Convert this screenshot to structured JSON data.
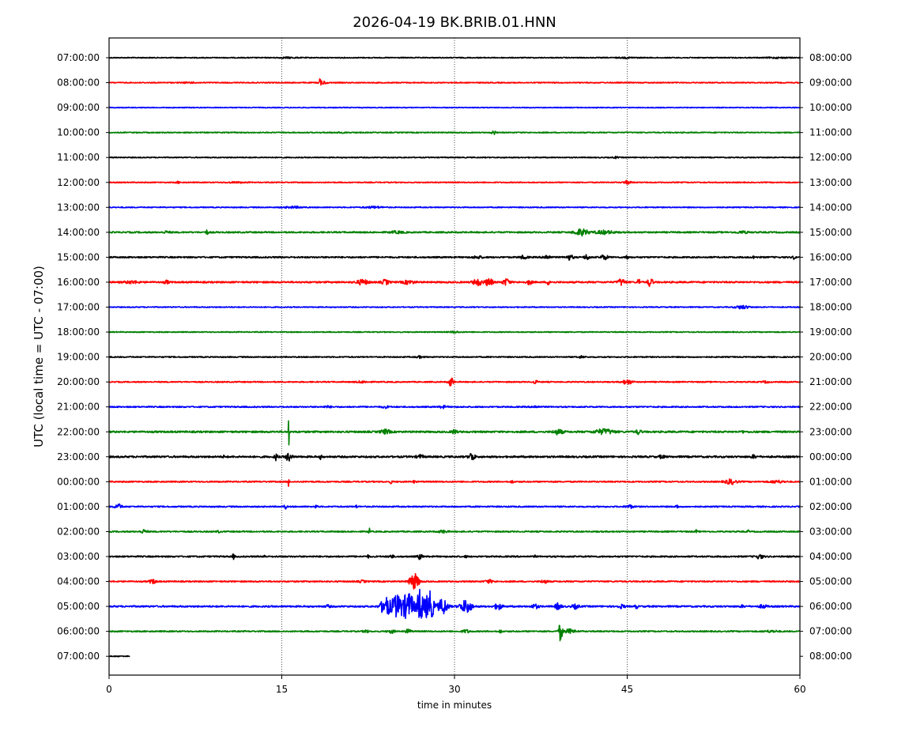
{
  "chart_data": {
    "type": "line",
    "title": "2026-04-19 BK.BRIB.01.HNN",
    "xlabel": "time in minutes",
    "ylabel": "UTC (local time = UTC - 07:00)",
    "xlim": [
      0,
      60
    ],
    "xticks": [
      "0",
      "15",
      "30",
      "45",
      "60"
    ],
    "vertical_gridlines_at": [
      15,
      30,
      45
    ],
    "left_tick_labels": [
      "07:00:00",
      "08:00:00",
      "09:00:00",
      "10:00:00",
      "11:00:00",
      "12:00:00",
      "13:00:00",
      "14:00:00",
      "15:00:00",
      "16:00:00",
      "17:00:00",
      "18:00:00",
      "19:00:00",
      "20:00:00",
      "21:00:00",
      "22:00:00",
      "23:00:00",
      "00:00:00",
      "01:00:00",
      "02:00:00",
      "03:00:00",
      "04:00:00",
      "05:00:00",
      "06:00:00",
      "07:00:00"
    ],
    "right_tick_labels": [
      "08:00:00",
      "09:00:00",
      "10:00:00",
      "11:00:00",
      "12:00:00",
      "13:00:00",
      "14:00:00",
      "15:00:00",
      "16:00:00",
      "17:00:00",
      "18:00:00",
      "19:00:00",
      "20:00:00",
      "21:00:00",
      "22:00:00",
      "23:00:00",
      "00:00:00",
      "01:00:00",
      "02:00:00",
      "03:00:00",
      "04:00:00",
      "05:00:00",
      "06:00:00",
      "07:00:00",
      "08:00:00"
    ],
    "trace_colors": [
      "#000000",
      "#ff0000",
      "#0000ff",
      "#008000"
    ],
    "traces": [
      {
        "end_minute": 60,
        "noise": 0.6,
        "events": [
          [
            15.5,
            0.6,
            0.8
          ],
          [
            45,
            0.5,
            0.8
          ],
          [
            58,
            0.5,
            1.0
          ]
        ]
      },
      {
        "end_minute": 60,
        "noise": 0.6,
        "events": [
          [
            18.3,
            6,
            0.08
          ],
          [
            18.6,
            2,
            0.3
          ],
          [
            7,
            0.5,
            0.6
          ]
        ]
      },
      {
        "end_minute": 60,
        "noise": 0.5,
        "events": []
      },
      {
        "end_minute": 60,
        "noise": 0.6,
        "events": [
          [
            33.4,
            3,
            0.15
          ],
          [
            20,
            0.4,
            1.0
          ]
        ]
      },
      {
        "end_minute": 60,
        "noise": 0.6,
        "events": [
          [
            44,
            1,
            0.2
          ]
        ]
      },
      {
        "end_minute": 60,
        "noise": 0.6,
        "events": [
          [
            45,
            2,
            0.3
          ],
          [
            11,
            0.6,
            0.8
          ],
          [
            6,
            1,
            0.2
          ]
        ]
      },
      {
        "end_minute": 60,
        "noise": 0.6,
        "events": [
          [
            16,
            1,
            0.8
          ],
          [
            23,
            1,
            0.8
          ]
        ]
      },
      {
        "end_minute": 60,
        "noise": 0.9,
        "events": [
          [
            41,
            4,
            0.6
          ],
          [
            43,
            2,
            0.8
          ],
          [
            8.5,
            3,
            0.1
          ],
          [
            5,
            1.2,
            0.3
          ],
          [
            25,
            1.2,
            0.6
          ],
          [
            55,
            1.2,
            0.5
          ]
        ]
      },
      {
        "end_minute": 60,
        "noise": 0.9,
        "events": [
          [
            38,
            2.5,
            0.3
          ],
          [
            40,
            3,
            0.3
          ],
          [
            41.5,
            3.5,
            0.2
          ],
          [
            43,
            3,
            0.3
          ],
          [
            45,
            4,
            0.1
          ],
          [
            32,
            1.5,
            0.4
          ],
          [
            36,
            2,
            0.3
          ],
          [
            56,
            2,
            0.1
          ],
          [
            59.5,
            3,
            0.1
          ]
        ]
      },
      {
        "end_minute": 60,
        "noise": 1.0,
        "events": [
          [
            22,
            3,
            0.5
          ],
          [
            24,
            3,
            0.3
          ],
          [
            26,
            2,
            0.5
          ],
          [
            32,
            4,
            0.4
          ],
          [
            33,
            5,
            0.3
          ],
          [
            34.5,
            4,
            0.3
          ],
          [
            36.5,
            3,
            0.2
          ],
          [
            38.2,
            6,
            0.1
          ],
          [
            44.5,
            4,
            0.3
          ],
          [
            46,
            5,
            0.1
          ],
          [
            47,
            6,
            0.2
          ],
          [
            2,
            1.5,
            0.6
          ],
          [
            5,
            2,
            0.2
          ]
        ]
      },
      {
        "end_minute": 60,
        "noise": 0.6,
        "events": [
          [
            55,
            2,
            0.6
          ]
        ]
      },
      {
        "end_minute": 60,
        "noise": 0.6,
        "events": [
          [
            30,
            1,
            0.4
          ]
        ]
      },
      {
        "end_minute": 60,
        "noise": 0.7,
        "events": [
          [
            27,
            1.2,
            0.3
          ],
          [
            41,
            1.2,
            0.3
          ]
        ]
      },
      {
        "end_minute": 60,
        "noise": 0.7,
        "events": [
          [
            29.7,
            6,
            0.2
          ],
          [
            37,
            2,
            0.2
          ],
          [
            45,
            3,
            0.4
          ],
          [
            22,
            1,
            0.5
          ],
          [
            57,
            1,
            0.3
          ]
        ]
      },
      {
        "end_minute": 60,
        "noise": 0.8,
        "events": [
          [
            29,
            1.5,
            0.3
          ],
          [
            24,
            1.2,
            0.3
          ],
          [
            37,
            1.2,
            0.3
          ],
          [
            19,
            1,
            0.3
          ]
        ]
      },
      {
        "end_minute": 60,
        "noise": 1.1,
        "events": [
          [
            15.6,
            25,
            0.03
          ],
          [
            43,
            3,
            0.8
          ],
          [
            39,
            3,
            0.4
          ],
          [
            30,
            2.5,
            0.2
          ],
          [
            24,
            2.5,
            0.4
          ],
          [
            46,
            3,
            0.2
          ],
          [
            55,
            2,
            0.1
          ]
        ]
      },
      {
        "end_minute": 60,
        "noise": 1.1,
        "events": [
          [
            14.5,
            4,
            0.15
          ],
          [
            15.6,
            5,
            0.25
          ],
          [
            18.4,
            3,
            0.1
          ],
          [
            31.5,
            5,
            0.25
          ],
          [
            27,
            2,
            0.3
          ],
          [
            56,
            2,
            0.2
          ],
          [
            10,
            1.5,
            0.1
          ],
          [
            48,
            2,
            0.2
          ]
        ]
      },
      {
        "end_minute": 60,
        "noise": 0.8,
        "events": [
          [
            15.6,
            13,
            0.03
          ],
          [
            54,
            3,
            0.5
          ],
          [
            58,
            1.5,
            0.6
          ],
          [
            24.5,
            2,
            0.1
          ],
          [
            35,
            2,
            0.1
          ],
          [
            26.5,
            1.5,
            0.1
          ]
        ]
      },
      {
        "end_minute": 60,
        "noise": 0.8,
        "events": [
          [
            0.8,
            3,
            0.3
          ],
          [
            15.3,
            3,
            0.1
          ],
          [
            18,
            2,
            0.1
          ],
          [
            45.2,
            2,
            0.3
          ],
          [
            49.3,
            3,
            0.1
          ],
          [
            21.5,
            1.5,
            0.1
          ]
        ]
      },
      {
        "end_minute": 60,
        "noise": 0.8,
        "events": [
          [
            22.6,
            6,
            0.05
          ],
          [
            3,
            2,
            0.3
          ],
          [
            29,
            1.5,
            0.4
          ],
          [
            51,
            3,
            0.05
          ],
          [
            55.5,
            2.5,
            0.05
          ],
          [
            9.5,
            1.5,
            0.1
          ]
        ]
      },
      {
        "end_minute": 60,
        "noise": 0.9,
        "events": [
          [
            10.8,
            3,
            0.1
          ],
          [
            13.5,
            2,
            0.1
          ],
          [
            22.5,
            1.5,
            0.1
          ],
          [
            24.5,
            2,
            0.2
          ],
          [
            27,
            3,
            0.2
          ],
          [
            31,
            1.2,
            0.1
          ],
          [
            37,
            1,
            0.1
          ],
          [
            56.5,
            2.5,
            0.3
          ]
        ]
      },
      {
        "end_minute": 60,
        "noise": 0.8,
        "events": [
          [
            3.8,
            2.5,
            0.3
          ],
          [
            33,
            2,
            0.3
          ],
          [
            37.8,
            2,
            0.3
          ],
          [
            26.5,
            10,
            0.4
          ],
          [
            22,
            1.2,
            0.3
          ]
        ]
      },
      {
        "end_minute": 60,
        "noise": 1.0,
        "events": [
          [
            24,
            12,
            0.4
          ],
          [
            25,
            14,
            0.5
          ],
          [
            26,
            17,
            0.5
          ],
          [
            27,
            22,
            0.25
          ],
          [
            27.8,
            20,
            0.4
          ],
          [
            29,
            10,
            0.4
          ],
          [
            31,
            8,
            0.5
          ],
          [
            33.8,
            4,
            0.3
          ],
          [
            37,
            2.5,
            0.3
          ],
          [
            39,
            4,
            0.25
          ],
          [
            40.5,
            2.5,
            0.3
          ],
          [
            44.5,
            2,
            0.3
          ],
          [
            45.8,
            3,
            0.1
          ],
          [
            19,
            1.5,
            0.2
          ],
          [
            55,
            1.2,
            0.2
          ],
          [
            56.8,
            2,
            0.3
          ]
        ]
      },
      {
        "end_minute": 60,
        "noise": 0.8,
        "events": [
          [
            39.2,
            12,
            0.15
          ],
          [
            40,
            2.5,
            0.5
          ],
          [
            22.3,
            2,
            0.2
          ],
          [
            24.5,
            2,
            0.3
          ],
          [
            26,
            3,
            0.2
          ],
          [
            31,
            2,
            0.3
          ],
          [
            34,
            2.5,
            0.1
          ],
          [
            57.5,
            1,
            0.6
          ]
        ]
      },
      {
        "end_minute": 1.8,
        "noise": 0.6,
        "events": []
      }
    ]
  }
}
